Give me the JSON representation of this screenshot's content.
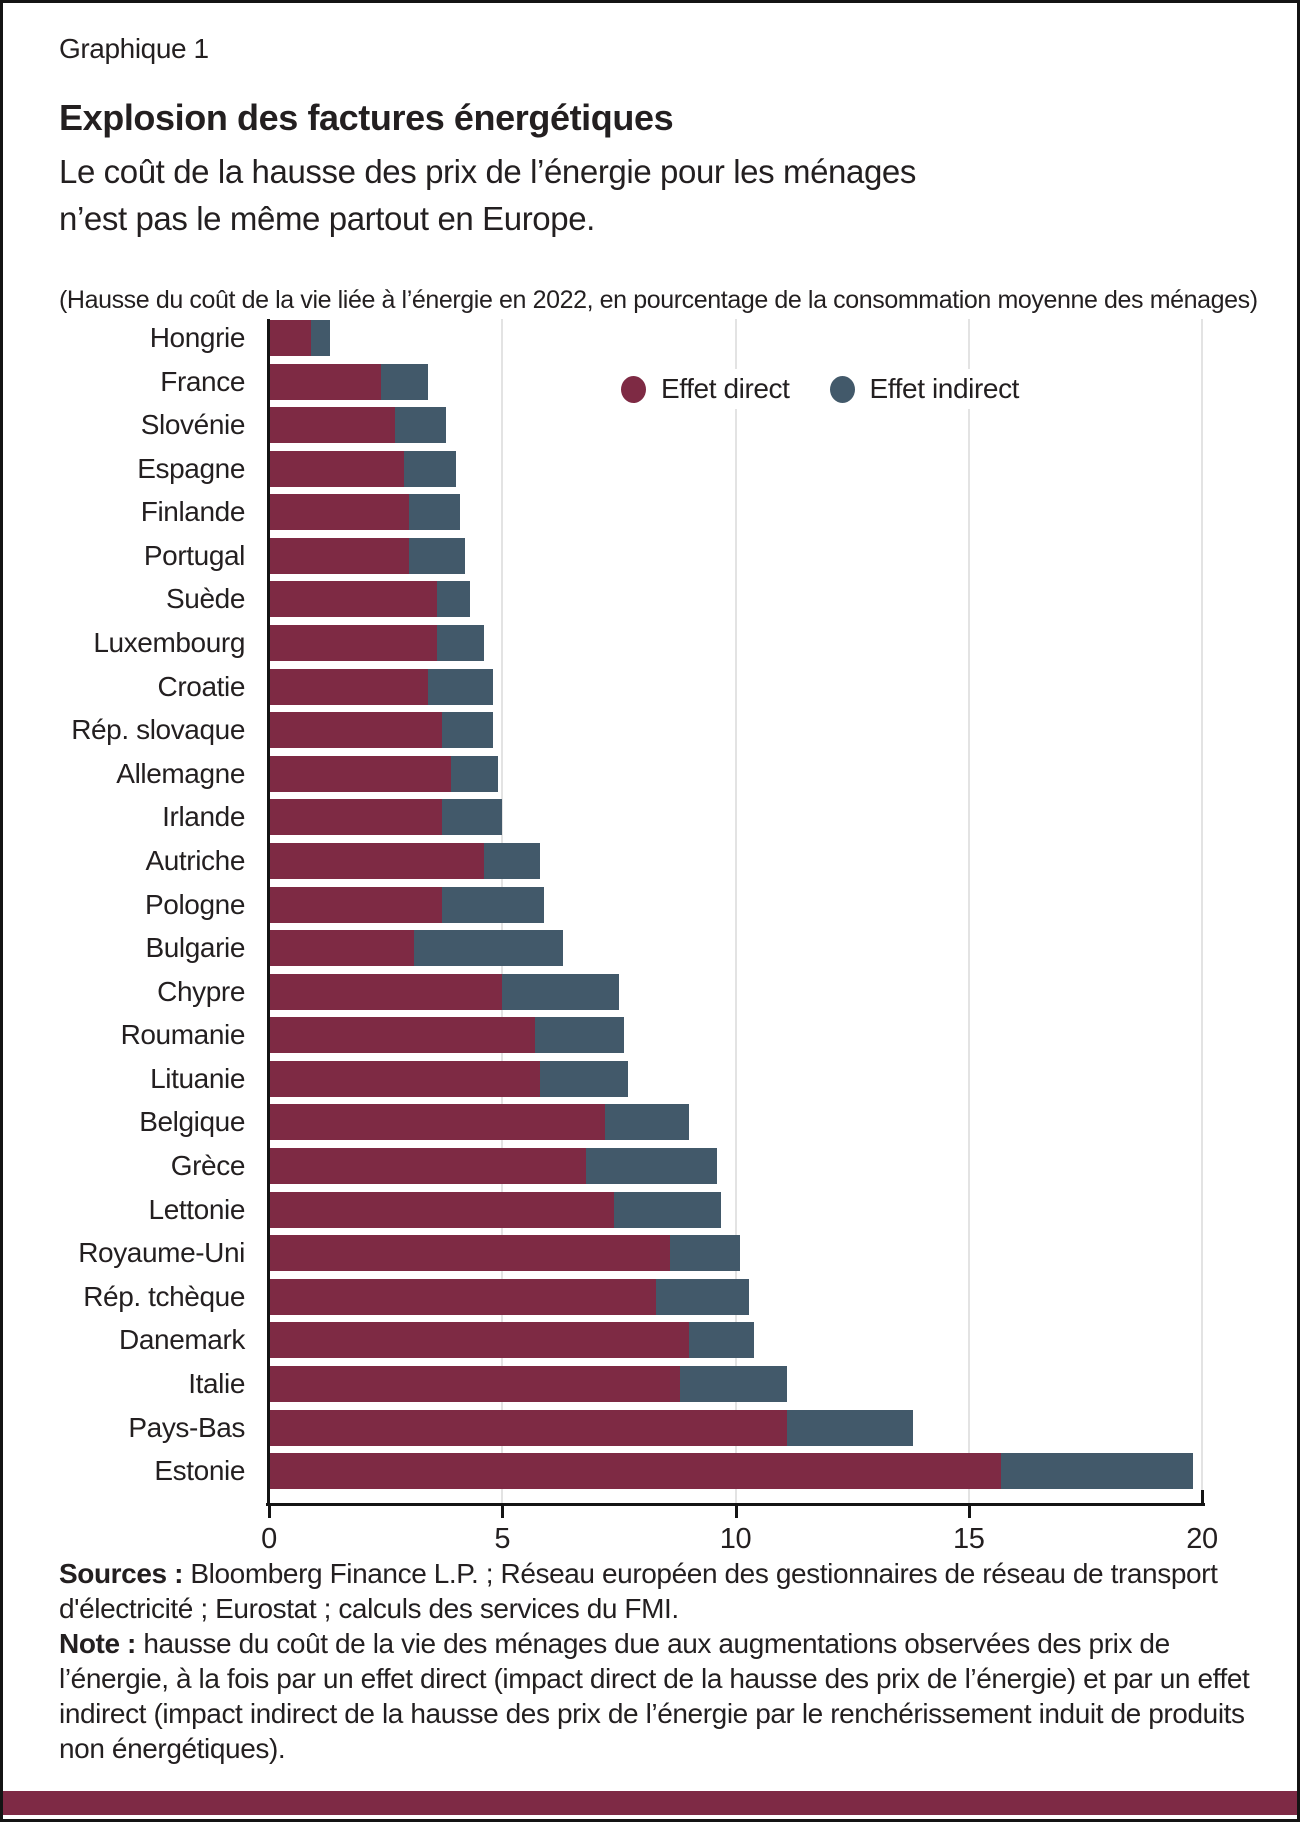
{
  "figure_label": "Graphique 1",
  "title": "Explosion des factures énergétiques",
  "subtitle_line1": "Le coût de la hausse des prix de l’énergie pour les ménages",
  "subtitle_line2": "n’est pas le même partout en Europe.",
  "unit_note": "(Hausse du coût de la vie liée à l’énergie en 2022, en pourcentage de la consommation moyenne des ménages)",
  "legend": [
    {
      "label": "Effet direct",
      "color": "#7e2a44"
    },
    {
      "label": "Effet indirect",
      "color": "#42596a"
    }
  ],
  "colors": {
    "direct": "#7e2a44",
    "indirect": "#42596a",
    "axis": "#141414",
    "gridline": "#e3e3e3",
    "bottom_band": "#7e2a45"
  },
  "chart_data": {
    "type": "bar",
    "orientation": "horizontal",
    "stacked": true,
    "title": "Explosion des factures énergétiques",
    "xlabel": "Hausse du coût de la vie liée à l’énergie en 2022, en pourcentage de la consommation moyenne des ménages",
    "ylabel": "",
    "xlim": [
      0,
      20
    ],
    "xticks": [
      0,
      5,
      10,
      15,
      20
    ],
    "grid": "vertical",
    "legend_position": "top-inside",
    "categories": [
      "Hongrie",
      "France",
      "Slovénie",
      "Espagne",
      "Finlande",
      "Portugal",
      "Suède",
      "Luxembourg",
      "Croatie",
      "Rép. slovaque",
      "Allemagne",
      "Irlande",
      "Autriche",
      "Pologne",
      "Bulgarie",
      "Chypre",
      "Roumanie",
      "Lituanie",
      "Belgique",
      "Grèce",
      "Lettonie",
      "Royaume-Uni",
      "Rép. tchèque",
      "Danemark",
      "Italie",
      "Pays-Bas",
      "Estonie"
    ],
    "series": [
      {
        "name": "Effet direct",
        "values": [
          0.9,
          2.4,
          2.7,
          2.9,
          3.0,
          3.0,
          3.6,
          3.6,
          3.4,
          3.7,
          3.9,
          3.7,
          4.6,
          3.7,
          3.1,
          5.0,
          5.7,
          5.8,
          7.2,
          6.8,
          7.4,
          8.6,
          8.3,
          9.0,
          8.8,
          11.1,
          15.7
        ]
      },
      {
        "name": "Effet indirect",
        "values": [
          0.4,
          1.0,
          1.1,
          1.1,
          1.1,
          1.2,
          0.7,
          1.0,
          1.4,
          1.1,
          1.0,
          1.3,
          1.2,
          2.2,
          3.2,
          2.5,
          1.9,
          1.9,
          1.8,
          2.8,
          2.3,
          1.5,
          2.0,
          1.4,
          2.3,
          2.7,
          4.1
        ]
      }
    ]
  },
  "footer": {
    "sources_label": "Sources :",
    "sources_text": " Bloomberg Finance L.P. ; Réseau européen des gestionnaires de réseau de transport d'électricité ; Eurostat ; calculs des services du FMI.",
    "note_label": "Note :",
    "note_text": " hausse du coût de la vie des ménages due aux augmentations observées des prix de l’énergie, à la fois par un effet direct (impact direct de la hausse des prix de l’énergie) et par un effet indirect (impact indirect de la hausse des prix de l’énergie par le renchérissement induit de produits non énergétiques)."
  }
}
